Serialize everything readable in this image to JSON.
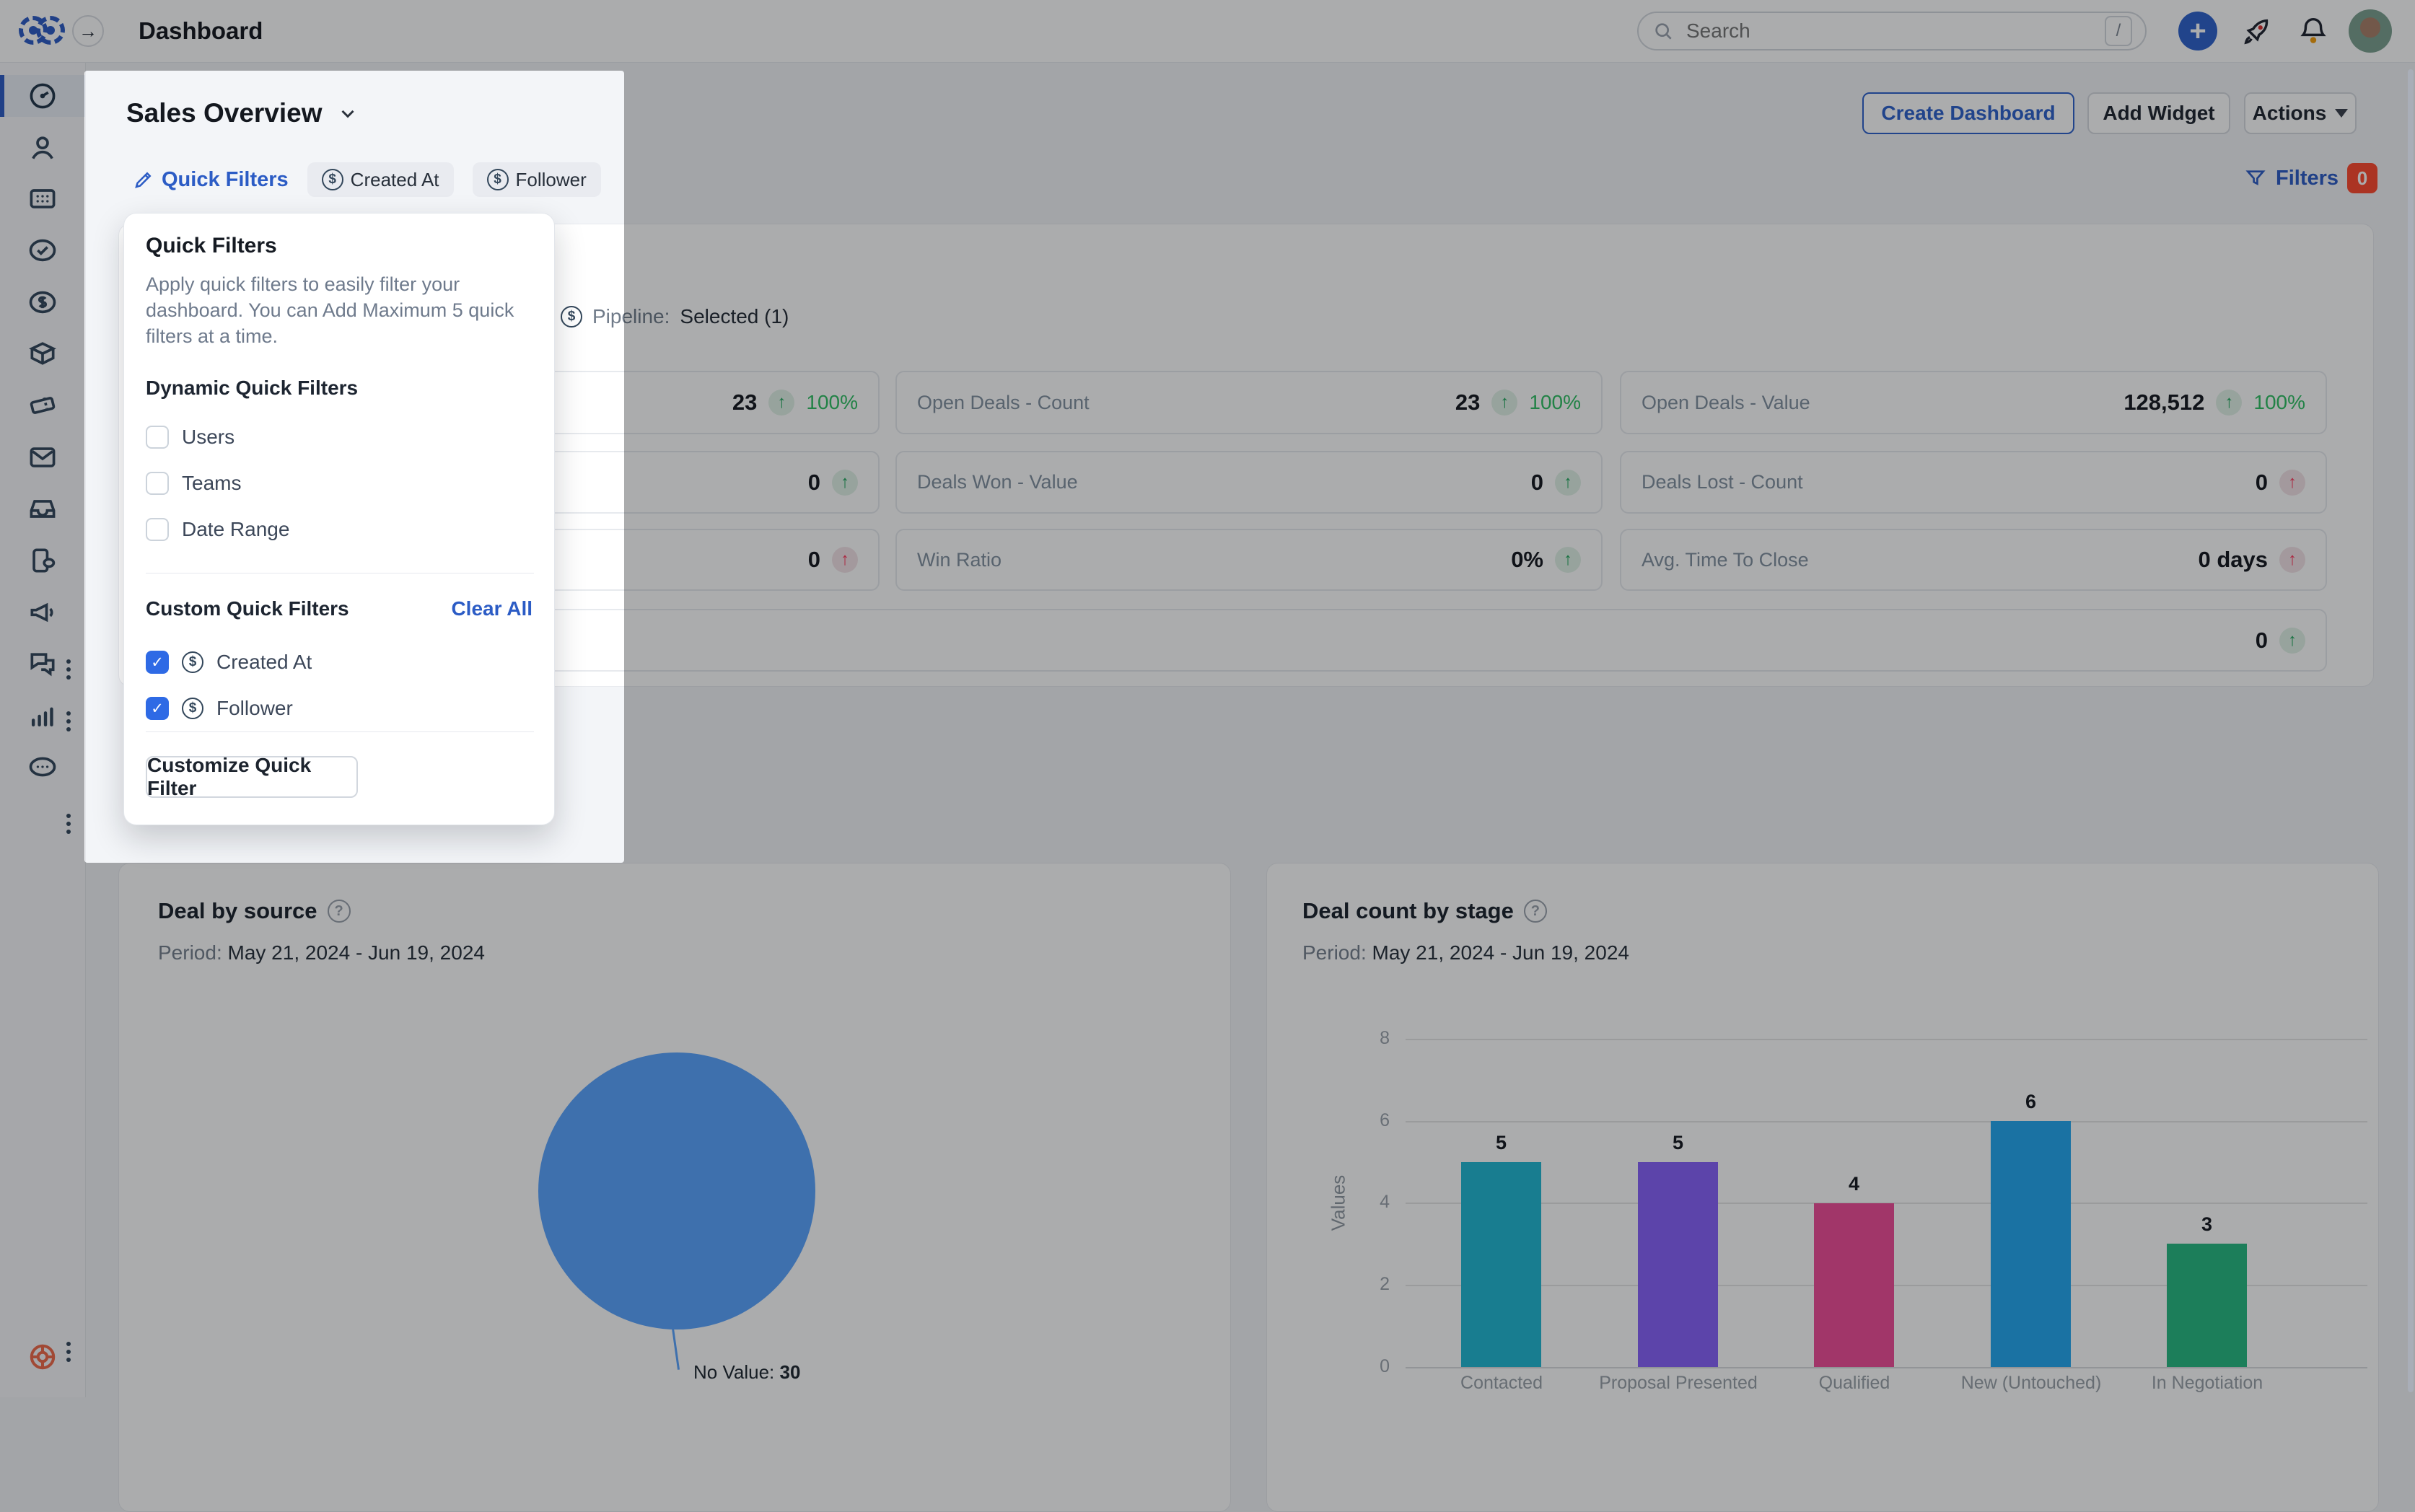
{
  "glyphs": {
    "dollar": "$",
    "plus": "+",
    "arrow_right": "→",
    "check": "✓",
    "up_arrow": "↑",
    "question": "?"
  },
  "colors": {
    "accent_blue": "#2c5cc5",
    "checkbox_blue": "#2e6ae5",
    "badge_red": "#ff4a2e",
    "trend_green": "#1fa85c",
    "trend_red": "#ff3a5e",
    "percent_green": "#2fbf63",
    "pie_blue": "#5aa4ff",
    "help_orange": "#f06a4a",
    "bar_colors": [
      "#21b8d4",
      "#8862fa",
      "#f04d98",
      "#23a8f0",
      "#27b981"
    ]
  },
  "header": {
    "title": "Dashboard",
    "search": {
      "placeholder": "Search",
      "shortcut": "/"
    }
  },
  "sidebar": {
    "items": [
      {
        "name": "dashboard",
        "active": true
      },
      {
        "name": "contacts",
        "active": false
      },
      {
        "name": "accounts",
        "active": false
      },
      {
        "name": "tasks",
        "active": false
      },
      {
        "name": "deals",
        "active": false
      },
      {
        "name": "products",
        "active": false
      },
      {
        "name": "tickets",
        "active": false
      },
      {
        "name": "emails",
        "active": false
      },
      {
        "name": "inbox",
        "active": false
      },
      {
        "name": "phone",
        "active": false
      },
      {
        "name": "campaigns",
        "active": false,
        "kebab": true
      },
      {
        "name": "chats",
        "active": false,
        "kebab": true
      },
      {
        "name": "analytics",
        "active": false
      },
      {
        "name": "more",
        "active": false,
        "kebab": true
      },
      {
        "name": "help",
        "active": false,
        "kebab": true
      }
    ]
  },
  "topbar_actions": {
    "create_dashboard": "Create Dashboard",
    "add_widget": "Add Widget",
    "actions": "Actions"
  },
  "filters": {
    "label": "Filters",
    "count": "0"
  },
  "board": {
    "title": "Sales Overview"
  },
  "quick_filter_bar": {
    "label": "Quick Filters",
    "chips": [
      {
        "label": "Created At"
      },
      {
        "label": "Follower"
      }
    ]
  },
  "popup": {
    "title": "Quick Filters",
    "description": "Apply quick filters to easily filter your dashboard. You can Add Maximum 5 quick filters at a time.",
    "dynamic_title": "Dynamic Quick Filters",
    "dynamic_options": [
      {
        "label": "Users",
        "checked": false
      },
      {
        "label": "Teams",
        "checked": false
      },
      {
        "label": "Date Range",
        "checked": false
      }
    ],
    "custom_title": "Custom Quick Filters",
    "clear_all": "Clear All",
    "custom_options": [
      {
        "label": "Created At",
        "checked": true
      },
      {
        "label": "Follower",
        "checked": true
      }
    ],
    "customize_button": "Customize Quick Filter"
  },
  "kpi": {
    "pipeline_label": "Pipeline:",
    "pipeline_value": "Selected (1)",
    "tiles": [
      {
        "label": "",
        "value": "23",
        "percent": "100%",
        "trend": "up-green"
      },
      {
        "label": "Open Deals - Count",
        "value": "23",
        "percent": "100%",
        "trend": "up-green"
      },
      {
        "label": "Open Deals - Value",
        "value": "128,512",
        "percent": "100%",
        "trend": "up-green"
      },
      {
        "label": "",
        "value": "0",
        "percent": "",
        "trend": "up-green"
      },
      {
        "label": "Deals Won - Value",
        "value": "0",
        "percent": "",
        "trend": "up-green"
      },
      {
        "label": "Deals Lost - Count",
        "value": "0",
        "percent": "",
        "trend": "up-red"
      },
      {
        "label": "",
        "value": "0",
        "percent": "",
        "trend": "up-red"
      },
      {
        "label": "Win Ratio",
        "value": "0%",
        "percent": "",
        "trend": "up-green"
      },
      {
        "label": "Avg. Time To Close",
        "value": "0 days",
        "percent": "",
        "trend": "up-red"
      },
      {
        "label": "",
        "value": "0",
        "percent": "",
        "trend": "up-green"
      }
    ]
  },
  "chart_data": [
    {
      "type": "pie",
      "title": "Deal by source",
      "period_label": "Period:",
      "period": "May 21, 2024 - Jun 19, 2024",
      "labels": [
        "No Value"
      ],
      "values": [
        30
      ],
      "colors": [
        "#5aa4ff"
      ],
      "annotation_label": "No Value:",
      "legend": "none"
    },
    {
      "type": "bar",
      "title": "Deal count by stage",
      "period_label": "Period:",
      "period": "May 21, 2024 - Jun 19, 2024",
      "categories": [
        "Contacted",
        "Proposal Presented",
        "Qualified",
        "New (Untouched)",
        "In Negotiation"
      ],
      "values": [
        5,
        5,
        4,
        6,
        3
      ],
      "colors": [
        "#21b8d4",
        "#8862fa",
        "#f04d98",
        "#23a8f0",
        "#27b981"
      ],
      "xlabel": "",
      "ylabel": "Values",
      "ylim": [
        0,
        8
      ],
      "yticks": [
        0,
        2,
        4,
        6,
        8
      ],
      "grid": true
    }
  ]
}
